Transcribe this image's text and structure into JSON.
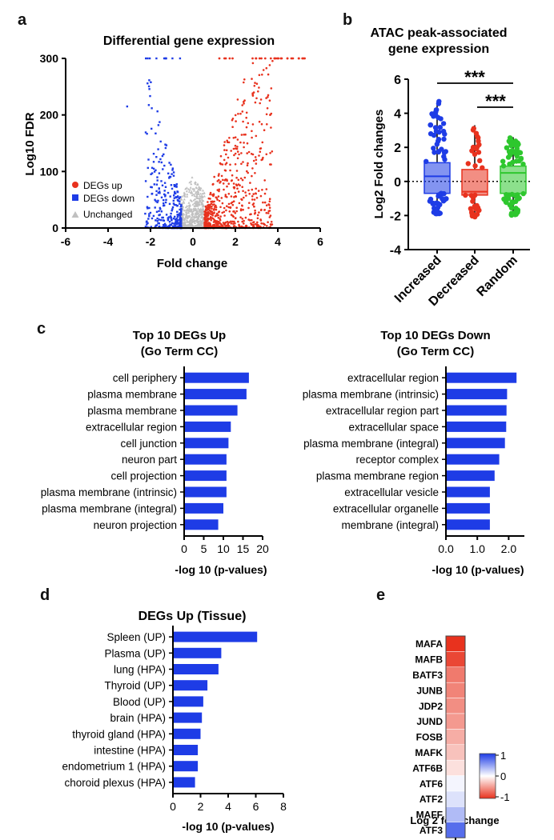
{
  "panel_labels": [
    "a",
    "b",
    "c",
    "d",
    "e"
  ],
  "chart_data": [
    {
      "id": "a",
      "type": "scatter",
      "title": "Differential gene expression",
      "xlabel": "Fold change",
      "ylabel": "Log10 FDR",
      "xlim": [
        -6,
        6
      ],
      "ylim": [
        0,
        300
      ],
      "xticks": [
        "-6",
        "-4",
        "-2",
        "0",
        "2",
        "4",
        "6"
      ],
      "yticks": [
        "0",
        "100",
        "200",
        "300"
      ],
      "legend": {
        "position": "bottom-left",
        "entries": [
          {
            "name": "DEGs up",
            "color": "#e8321e"
          },
          {
            "name": "DEGs down",
            "color": "#1e3ce6"
          },
          {
            "name": "Unchanged",
            "color": "#c0c0c0"
          }
        ]
      },
      "notes": "volcano plot; up points x>0.5, down points x<-0.5, unchanged near 0"
    },
    {
      "id": "b",
      "type": "box",
      "title": "ATAC peak-associated gene expression",
      "title_lines": [
        "ATAC peak-associated",
        "gene expression"
      ],
      "ylabel": "Log2 Fold changes",
      "ylim": [
        -4,
        6
      ],
      "yticks": [
        "-4",
        "-2",
        "0",
        "2",
        "4",
        "6"
      ],
      "categories": [
        "Increased",
        "Decreased",
        "Random"
      ],
      "colors": [
        "#1e3ce6",
        "#e8321e",
        "#2ec72e"
      ],
      "boxes": [
        {
          "name": "Increased",
          "min": -1.9,
          "q1": -0.7,
          "median": 0.3,
          "q3": 1.1,
          "max": 4.7
        },
        {
          "name": "Decreased",
          "min": -2.1,
          "q1": -0.8,
          "median": -0.6,
          "q3": 0.7,
          "max": 3.3
        },
        {
          "name": "Random",
          "min": -2.0,
          "q1": -0.7,
          "median": 0.5,
          "q3": 0.9,
          "max": 2.6
        }
      ],
      "significance": [
        "***",
        "***"
      ]
    },
    {
      "id": "c1",
      "type": "bar",
      "orientation": "horizontal",
      "title_lines": [
        "Top 10 DEGs Up",
        "(Go Term CC)"
      ],
      "xlabel": "-log 10 (p-values)",
      "xlim": [
        0,
        20
      ],
      "xticks": [
        "0",
        "5",
        "10",
        "15",
        "20"
      ],
      "categories": [
        "cell periphery",
        "plasma membrane",
        "plasma membrane",
        "extracellular region",
        "cell junction",
        "neuron part",
        "cell projection",
        "plasma membrane (intrinsic)",
        "plasma membrane (integral)",
        "neuron projection"
      ],
      "values": [
        16.5,
        15.9,
        13.6,
        11.9,
        11.3,
        10.8,
        10.8,
        10.8,
        10.0,
        8.7
      ],
      "color": "#1e3ce6"
    },
    {
      "id": "c2",
      "type": "bar",
      "orientation": "horizontal",
      "title_lines": [
        "Top 10 DEGs Down",
        "(Go Term CC)"
      ],
      "xlabel": "-log 10 (p-values)",
      "xlim": [
        0,
        2.5
      ],
      "xticks": [
        "0.0",
        "1.0",
        "2.0"
      ],
      "categories": [
        "extracellular region",
        "plasma membrane (intrinsic)",
        "extracellular region part",
        "extracellular space",
        "plasma membrane (integral)",
        "receptor complex",
        "plasma membrane region",
        "extracellular vesicle",
        "extracellular organelle",
        "membrane (integral)"
      ],
      "values": [
        2.25,
        1.95,
        1.93,
        1.92,
        1.88,
        1.7,
        1.55,
        1.4,
        1.4,
        1.4
      ],
      "color": "#1e3ce6"
    },
    {
      "id": "d",
      "type": "bar",
      "orientation": "horizontal",
      "title": "DEGs Up (Tissue)",
      "xlabel": "-log 10 (p-values)",
      "xlim": [
        0,
        8
      ],
      "xticks": [
        "0",
        "2",
        "4",
        "6",
        "8"
      ],
      "categories": [
        "Spleen (UP)",
        "Plasma (UP)",
        "lung (HPA)",
        "Thyroid (UP)",
        "Blood (UP)",
        "brain (HPA)",
        "thyroid gland (HPA)",
        "intestine (HPA)",
        "endometrium 1 (HPA)",
        "choroid plexus (HPA)"
      ],
      "values": [
        6.1,
        3.5,
        3.3,
        2.5,
        2.2,
        2.1,
        2.0,
        1.8,
        1.8,
        1.6
      ],
      "color": "#1e3ce6"
    },
    {
      "id": "e",
      "type": "heatmap",
      "xlabel": "Log 2 fold change",
      "rows": [
        "MAFA",
        "MAFB",
        "BATF3",
        "JUNB",
        "JDP2",
        "JUND",
        "FOSB",
        "MAFK",
        "ATF6B",
        "ATF6",
        "ATF2",
        "MAFF",
        "ATF3"
      ],
      "values": [
        -1.0,
        -0.9,
        -0.65,
        -0.6,
        -0.55,
        -0.5,
        -0.4,
        -0.3,
        -0.15,
        0.05,
        0.15,
        0.35,
        0.75
      ],
      "scale": {
        "min": -1,
        "max": 1,
        "ticks": [
          "1",
          "0",
          "-1"
        ],
        "low_color": "#e8321e",
        "mid_color": "#ffffff",
        "high_color": "#1e3ce6"
      }
    }
  ]
}
